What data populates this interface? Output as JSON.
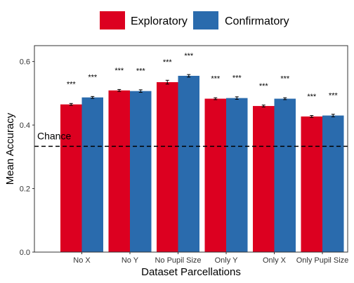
{
  "chart_data": {
    "type": "bar",
    "xlabel": "Dataset Parcellations",
    "ylabel": "Mean Accuracy",
    "ylim": [
      0,
      0.65
    ],
    "yticks": [
      "0.0",
      "0.2",
      "0.4",
      "0.6"
    ],
    "grid": false,
    "legend_position": "top",
    "categories": [
      "No X",
      "No Y",
      "No Pupil Size",
      "Only Y",
      "Only X",
      "Only Pupil Size"
    ],
    "series": [
      {
        "name": "Exploratory",
        "color": "#DC0020",
        "values": [
          0.465,
          0.509,
          0.535,
          0.483,
          0.46,
          0.427
        ],
        "errors": [
          0.003,
          0.003,
          0.006,
          0.003,
          0.003,
          0.003
        ],
        "significance": [
          "***",
          "***",
          "***",
          "***",
          "***",
          "***"
        ]
      },
      {
        "name": "Confirmatory",
        "color": "#2A6BAD",
        "values": [
          0.487,
          0.507,
          0.555,
          0.485,
          0.483,
          0.43
        ],
        "errors": [
          0.003,
          0.004,
          0.004,
          0.004,
          0.003,
          0.004
        ],
        "significance": [
          "***",
          "***",
          "***",
          "***",
          "***",
          "***"
        ]
      }
    ],
    "reference_line": {
      "label": "Chance",
      "value": 0.333,
      "style": "dashed"
    }
  }
}
